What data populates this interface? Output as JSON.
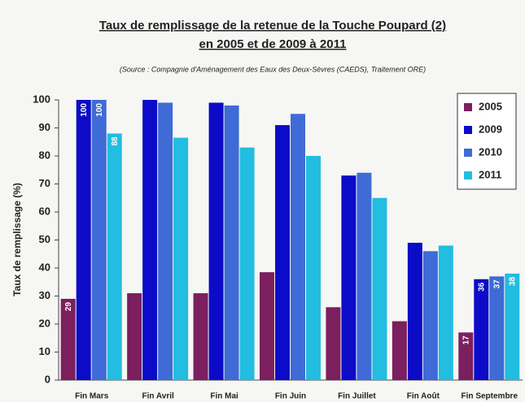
{
  "chart_data": {
    "type": "bar",
    "title": "Taux de remplissage de la retenue  de la Touche Poupard (2)",
    "subtitle": "en 2005 et de 2009 à 2011",
    "source": "(Source : Compagnie d'Aménagement des Eaux des Deux-Sèvres (CAEDS), Traitement ORE)",
    "y_label": "Taux de remplissage (%)",
    "categories": [
      "Fin Mars",
      "Fin Avril",
      "Fin Mai",
      "Fin Juin",
      "Fin Juillet",
      "Fin Août",
      "Fin Septembre"
    ],
    "series": [
      {
        "name": "2005",
        "color": "#7b1f5e",
        "values": [
          29,
          31,
          31,
          38.5,
          26,
          21,
          17
        ],
        "value_labels": [
          "29",
          null,
          null,
          null,
          null,
          null,
          "17"
        ]
      },
      {
        "name": "2009",
        "color": "#0c0cc8",
        "values": [
          100,
          100,
          99,
          91,
          73,
          49,
          36
        ],
        "value_labels": [
          "100",
          null,
          null,
          null,
          null,
          null,
          "36"
        ]
      },
      {
        "name": "2010",
        "color": "#3e6bd6",
        "values": [
          100,
          99,
          98,
          95,
          74,
          46,
          37
        ],
        "value_labels": [
          "100",
          null,
          null,
          null,
          null,
          null,
          "37"
        ]
      },
      {
        "name": "2011",
        "color": "#22bde0",
        "values": [
          88,
          86.5,
          83,
          80,
          65,
          48,
          38
        ],
        "value_labels": [
          "88",
          null,
          null,
          null,
          null,
          null,
          "38"
        ]
      }
    ],
    "ylim": [
      0,
      100
    ],
    "yticks": [
      0,
      10,
      20,
      30,
      40,
      50,
      60,
      70,
      80,
      90,
      100
    ],
    "legend": "upper right"
  }
}
